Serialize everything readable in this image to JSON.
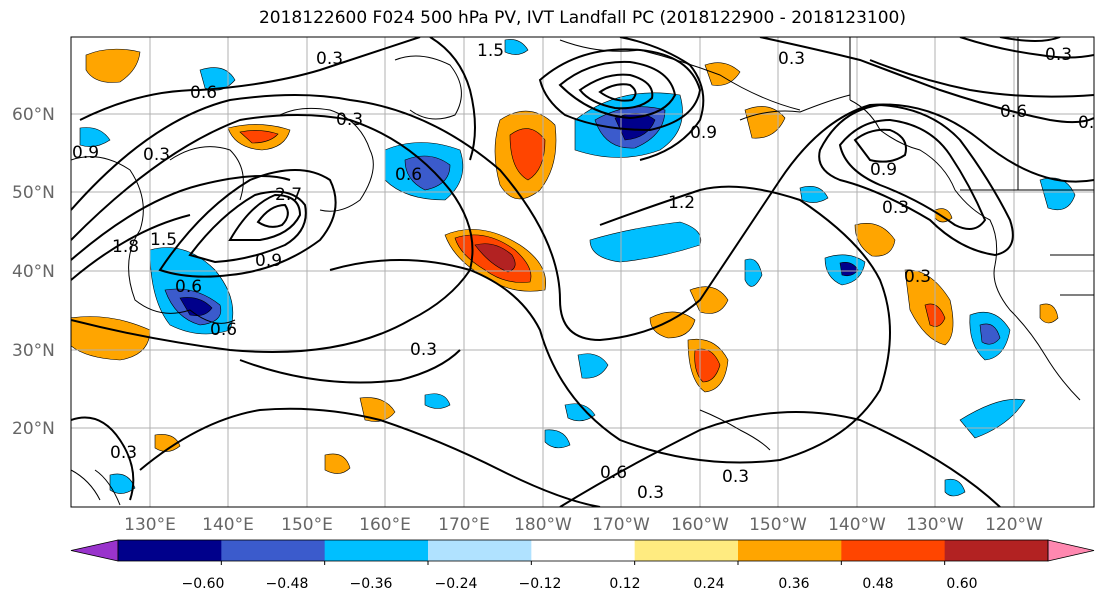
{
  "title": "2018122600 F024 500 hPa PV, IVT Landfall PC (2018122900 - 2018123100)",
  "lat_labels": [
    "60°N",
    "50°N",
    "40°N",
    "30°N",
    "20°N"
  ],
  "lon_labels": [
    "130°E",
    "140°E",
    "150°E",
    "160°E",
    "170°E",
    "180°W",
    "170°W",
    "160°W",
    "150°W",
    "140°W",
    "130°W",
    "120°W"
  ],
  "contour_labels": [
    "0.3",
    "1.5",
    "0.6",
    "0.3",
    "0.6",
    "0.9",
    "0.3",
    "0.6",
    "0.3",
    "0.9",
    "0.3",
    "1.2",
    "2.7",
    "1.8",
    "1.5",
    "0.9",
    "0.6",
    "0.6",
    "0.3",
    "0.9",
    "0.3",
    "0.3",
    "0.6",
    "0.3",
    "0.3",
    "0.3",
    "0.3"
  ],
  "colorbar": {
    "ticks": [
      "−0.60",
      "−0.48",
      "−0.36",
      "−0.24",
      "−0.12",
      "0.12",
      "0.24",
      "0.36",
      "0.48",
      "0.60"
    ],
    "colors": [
      "#9933cc",
      "#00008b",
      "#3b5bcc",
      "#00bfff",
      "#b0e2ff",
      "#ffffff",
      "#ffeb80",
      "#ffa500",
      "#ff4500",
      "#b22222",
      "#ff88b0"
    ]
  },
  "colors": {
    "neg_strong": "#00008b",
    "neg_mid": "#3b5bcc",
    "neg_light": "#00bfff",
    "neg_faint": "#b0e2ff",
    "pos_faint": "#ffeb80",
    "pos_light": "#ffa500",
    "pos_mid": "#ff4500",
    "pos_strong": "#b22222",
    "pos_extreme": "#ff88b0"
  }
}
